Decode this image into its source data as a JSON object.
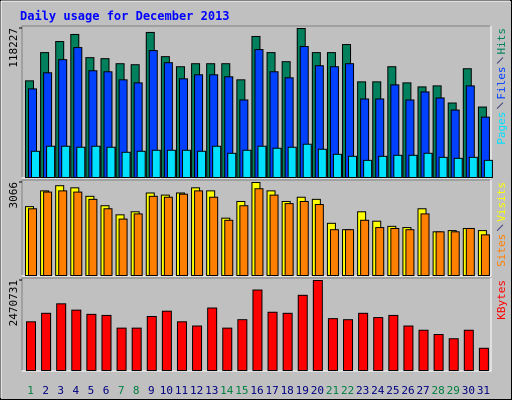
{
  "chart_data": [
    {
      "type": "bar",
      "title": "Daily usage for December 2013",
      "ylim": [
        0,
        118227
      ],
      "yticks": [
        118227
      ],
      "series": [
        {
          "name": "Hits",
          "color": "#00805c",
          "values": [
            76700,
            99100,
            107900,
            113500,
            95100,
            94300,
            90300,
            89500,
            115100,
            95900,
            87900,
            90300,
            90300,
            90300,
            77500,
            111900,
            99100,
            91900,
            118227,
            99100,
            99100,
            105500,
            75900,
            75900,
            87900,
            75100,
            71900,
            72700,
            59100,
            86300,
            55900
          ]
        },
        {
          "name": "Files",
          "color": "#0040ff",
          "values": [
            70300,
            83100,
            93500,
            103100,
            84700,
            83900,
            77500,
            75100,
            100700,
            91100,
            78300,
            81500,
            81500,
            79900,
            61500,
            101500,
            83900,
            79100,
            103900,
            88700,
            87900,
            90300,
            62300,
            62300,
            73500,
            61500,
            67900,
            63100,
            53500,
            72700,
            47900
          ]
        },
        {
          "name": "Pages",
          "color": "#00e0ff",
          "values": [
            20800,
            24800,
            24800,
            24000,
            24800,
            24000,
            20000,
            20800,
            21600,
            21600,
            21600,
            20800,
            24800,
            19200,
            21600,
            24800,
            23200,
            24000,
            26400,
            22400,
            18400,
            16800,
            13600,
            16800,
            17600,
            17600,
            19200,
            16000,
            15200,
            16000,
            13600
          ]
        }
      ]
    },
    {
      "type": "bar",
      "ylim": [
        0,
        3066
      ],
      "yticks": [
        3066
      ],
      "series": [
        {
          "name": "Visits",
          "color": "#ffff00",
          "values": [
            2270,
            2790,
            2960,
            2890,
            2610,
            2300,
            2000,
            2100,
            2720,
            2650,
            2720,
            2890,
            2790,
            1890,
            2440,
            3066,
            2790,
            2440,
            2580,
            2510,
            1720,
            1510,
            2100,
            1790,
            1620,
            1580,
            2200,
            1440,
            1480,
            1550,
            1480
          ]
        },
        {
          "name": "Sites",
          "color": "#ff8000",
          "values": [
            2200,
            2750,
            2790,
            2750,
            2510,
            2200,
            1860,
            2030,
            2610,
            2580,
            2680,
            2790,
            2580,
            1820,
            2300,
            2860,
            2650,
            2370,
            2440,
            2340,
            1510,
            1510,
            1820,
            1580,
            1550,
            1510,
            2030,
            1440,
            1440,
            1550,
            1340
          ]
        }
      ]
    },
    {
      "type": "bar",
      "ylim": [
        0,
        2470731
      ],
      "yticks": [
        2470731
      ],
      "categories": [
        "1",
        "2",
        "3",
        "4",
        "5",
        "6",
        "7",
        "8",
        "9",
        "10",
        "11",
        "12",
        "13",
        "14",
        "15",
        "16",
        "17",
        "18",
        "19",
        "20",
        "21",
        "22",
        "23",
        "24",
        "25",
        "26",
        "27",
        "28",
        "29",
        "30",
        "31"
      ],
      "category_colors": [
        "#008040",
        "#000080",
        "#000080",
        "#000080",
        "#000080",
        "#000080",
        "#008040",
        "#008040",
        "#000080",
        "#000080",
        "#000080",
        "#000080",
        "#000080",
        "#008040",
        "#008040",
        "#000080",
        "#000080",
        "#000080",
        "#000080",
        "#000080",
        "#008040",
        "#008040",
        "#000080",
        "#000080",
        "#000080",
        "#000080",
        "#000080",
        "#008040",
        "#008040",
        "#000080",
        "#000080"
      ],
      "series": [
        {
          "name": "KBytes",
          "color": "#ff0000",
          "values": [
            1337000,
            1570000,
            1831000,
            1657000,
            1541000,
            1512000,
            1163000,
            1163000,
            1483000,
            1628000,
            1337000,
            1221000,
            1715000,
            1163000,
            1395000,
            2209000,
            1599000,
            1570000,
            2064000,
            2470731,
            1424000,
            1395000,
            1570000,
            1453000,
            1512000,
            1221000,
            1105000,
            988000,
            872000,
            1105000,
            610000
          ]
        }
      ]
    }
  ]
}
